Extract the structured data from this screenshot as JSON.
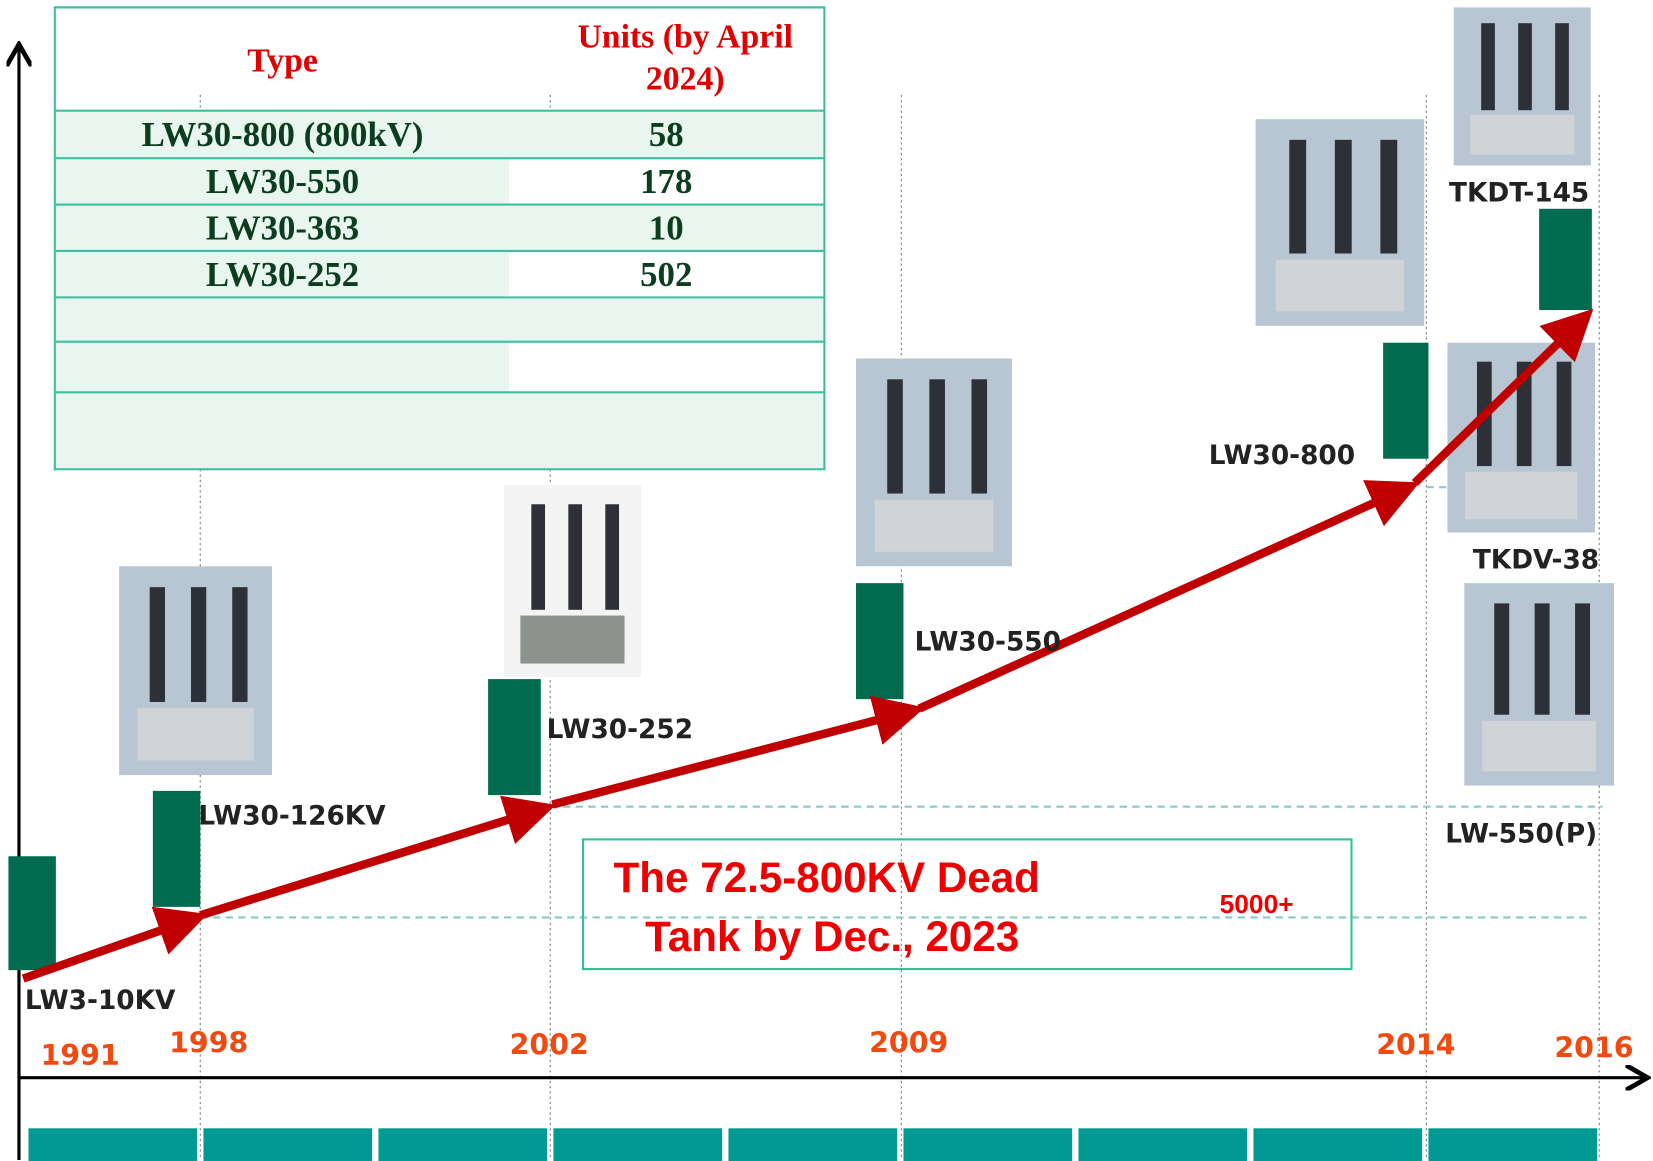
{
  "table": {
    "headers": [
      "Type",
      "Units (by April 2024)"
    ],
    "rows": [
      [
        "LW30-800 (800kV)",
        "58"
      ],
      [
        "LW30-550",
        "178"
      ],
      [
        "LW30-363",
        "10"
      ],
      [
        "LW30-252",
        "502"
      ]
    ]
  },
  "years": [
    "1991",
    "1998",
    "2002",
    "2009",
    "2014",
    "2016"
  ],
  "products": [
    "LW3-10KV",
    "LW30-126KV",
    "LW30-252",
    "LW30-550",
    "LW30-800",
    "TKDT-145",
    "TKDV-38",
    "LW-550(P)"
  ],
  "banner": {
    "lines": [
      "The 72.5-800KV Dead",
      "Tank by Dec., 2023"
    ],
    "total": "5000+"
  }
}
